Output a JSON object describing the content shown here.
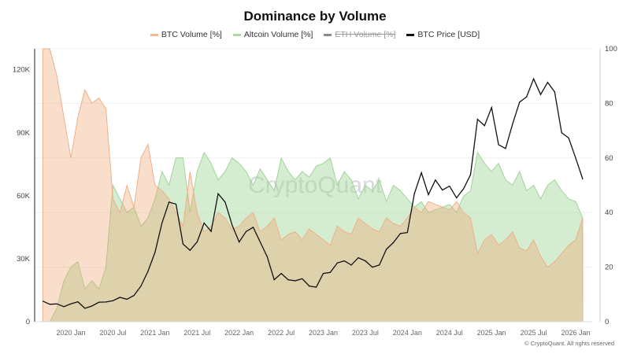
{
  "chart_data": {
    "type": "area",
    "title": "Dominance by Volume",
    "legend": [
      {
        "name": "BTC Volume [%]",
        "color": "#f4b894",
        "visible": true
      },
      {
        "name": "Altcoin Volume [%]",
        "color": "#a8dca0",
        "visible": true
      },
      {
        "name": "ETH Volume [%]",
        "color": "#888888",
        "visible": false
      },
      {
        "name": "BTC Price [USD]",
        "color": "#111111",
        "visible": true
      }
    ],
    "legend_position": "top",
    "left_axis": {
      "ticks": [
        "0",
        "30K",
        "60K",
        "90K",
        "120K"
      ],
      "values": [
        0,
        30000,
        60000,
        90000,
        120000
      ],
      "range": [
        0,
        130000
      ]
    },
    "right_axis": {
      "ticks": [
        "0",
        "20",
        "40",
        "60",
        "80",
        "100"
      ],
      "values": [
        0,
        20,
        40,
        60,
        80,
        100
      ],
      "range": [
        0,
        100
      ]
    },
    "x_ticks": [
      "2020 Jan",
      "2020 Jul",
      "2021 Jan",
      "2021 Jul",
      "2022 Jan",
      "2022 Jul",
      "2023 Jan",
      "2023 Jul",
      "2024 Jan",
      "2024 Jul",
      "2025 Jan",
      "2025 Jul",
      "2026 Jan"
    ],
    "x_start": "2019-09",
    "x": [
      "2019-09",
      "2019-10",
      "2019-11",
      "2019-12",
      "2020-01",
      "2020-02",
      "2020-03",
      "2020-04",
      "2020-05",
      "2020-06",
      "2020-07",
      "2020-08",
      "2020-09",
      "2020-10",
      "2020-11",
      "2020-12",
      "2021-01",
      "2021-02",
      "2021-03",
      "2021-04",
      "2021-05",
      "2021-06",
      "2021-07",
      "2021-08",
      "2021-09",
      "2021-10",
      "2021-11",
      "2021-12",
      "2022-01",
      "2022-02",
      "2022-03",
      "2022-04",
      "2022-05",
      "2022-06",
      "2022-07",
      "2022-08",
      "2022-09",
      "2022-10",
      "2022-11",
      "2022-12",
      "2023-01",
      "2023-02",
      "2023-03",
      "2023-04",
      "2023-05",
      "2023-06",
      "2023-07",
      "2023-08",
      "2023-09",
      "2023-10",
      "2023-11",
      "2023-12",
      "2024-01",
      "2024-02",
      "2024-03",
      "2024-04",
      "2024-05",
      "2024-06",
      "2024-07",
      "2024-08",
      "2024-09",
      "2024-10",
      "2024-11",
      "2024-12",
      "2025-01",
      "2025-02",
      "2025-03",
      "2025-04",
      "2025-05",
      "2025-06",
      "2025-07",
      "2025-08",
      "2025-09",
      "2025-10",
      "2025-11",
      "2025-12",
      "2026-01",
      "2026-02"
    ],
    "series": [
      {
        "name": "BTC Volume [%]",
        "axis": "right",
        "values": [
          100,
          100,
          90,
          75,
          60,
          75,
          85,
          80,
          82,
          78,
          45,
          40,
          50,
          42,
          60,
          65,
          50,
          48,
          45,
          40,
          35,
          55,
          40,
          33,
          35,
          40,
          38,
          34,
          35,
          38,
          40,
          33,
          35,
          38,
          30,
          32,
          33,
          30,
          34,
          32,
          30,
          28,
          35,
          33,
          32,
          38,
          36,
          34,
          33,
          38,
          36,
          35,
          38,
          42,
          40,
          44,
          43,
          42,
          41,
          44,
          40,
          38,
          25,
          30,
          32,
          28,
          30,
          33,
          27,
          26,
          30,
          24,
          20,
          22,
          25,
          28,
          30,
          38
        ]
      },
      {
        "name": "Altcoin Volume [%]",
        "axis": "right",
        "values": [
          0,
          0,
          5,
          15,
          20,
          22,
          12,
          15,
          12,
          20,
          50,
          45,
          40,
          42,
          35,
          38,
          45,
          55,
          50,
          60,
          60,
          40,
          55,
          62,
          58,
          52,
          55,
          60,
          58,
          55,
          50,
          56,
          52,
          48,
          60,
          55,
          52,
          55,
          53,
          57,
          58,
          60,
          50,
          55,
          52,
          45,
          50,
          48,
          52,
          44,
          50,
          48,
          45,
          42,
          44,
          40,
          41,
          42,
          43,
          40,
          46,
          48,
          62,
          58,
          55,
          58,
          52,
          50,
          55,
          48,
          50,
          45,
          50,
          52,
          48,
          45,
          44,
          38
        ]
      },
      {
        "name": "BTC Price [USD]",
        "axis": "left",
        "values": [
          9800,
          8300,
          8500,
          7200,
          8500,
          9500,
          6400,
          7500,
          9300,
          9400,
          10000,
          11600,
          10700,
          12500,
          17000,
          24000,
          33000,
          47000,
          57000,
          56000,
          37000,
          34000,
          38000,
          47000,
          43000,
          61000,
          57000,
          46000,
          38000,
          43000,
          45000,
          38000,
          31000,
          20000,
          23000,
          20000,
          19500,
          20500,
          17000,
          16500,
          23000,
          23500,
          28000,
          29000,
          27000,
          30500,
          29000,
          26000,
          27000,
          34500,
          37700,
          42000,
          42500,
          61000,
          71000,
          60500,
          67500,
          62700,
          64600,
          59000,
          63300,
          70000,
          96400,
          93400,
          102000,
          84300,
          82500,
          94200,
          104600,
          107100,
          115700,
          108200,
          114000,
          109500,
          90000,
          87500,
          78000,
          68000
        ]
      }
    ],
    "grid": true
  },
  "watermark": "CryptoQuant",
  "credit": "© CryptoQuant. All rights reserved"
}
